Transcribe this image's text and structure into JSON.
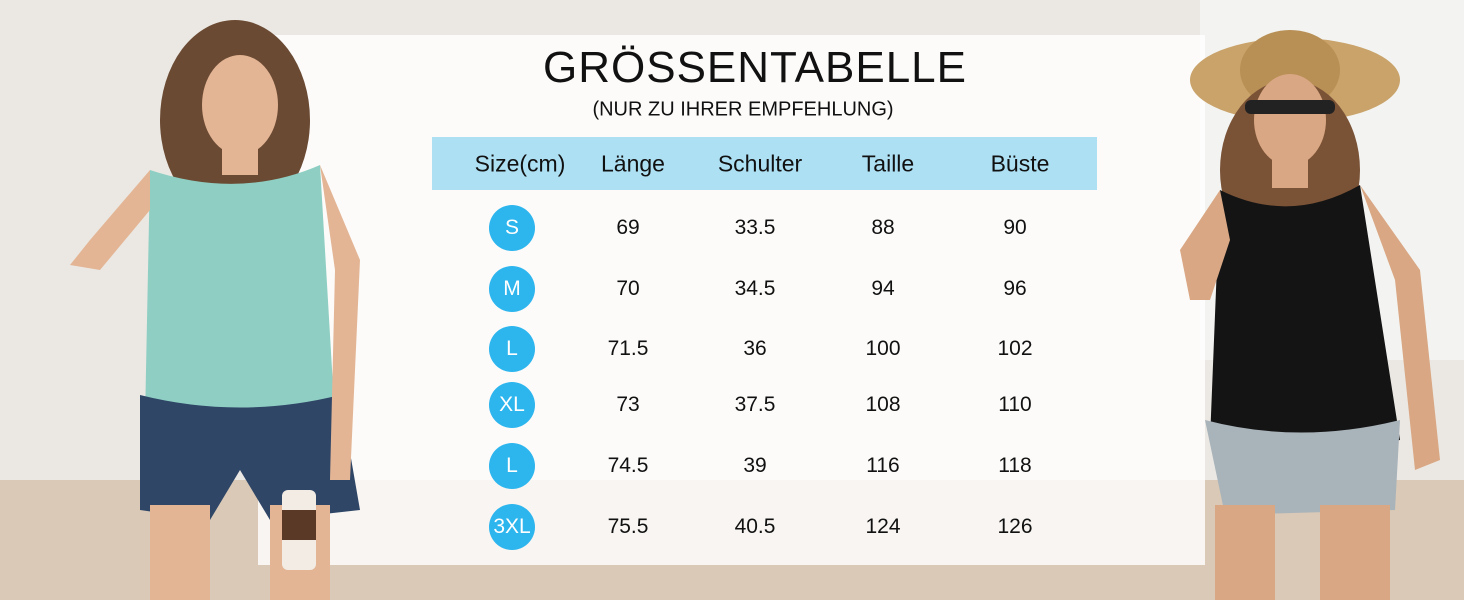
{
  "header": {
    "title": "GRÖSSENTABELLE",
    "subtitle": "(NUR ZU IHRER EMPFEHLUNG)"
  },
  "table": {
    "columns": [
      "Size(cm)",
      "Länge",
      "Schulter",
      "Taille",
      "Büste"
    ],
    "rows": [
      [
        "S",
        "69",
        "33.5",
        "88",
        "90"
      ],
      [
        "M",
        "70",
        "34.5",
        "94",
        "96"
      ],
      [
        "L",
        "71.5",
        "36",
        "100",
        "102"
      ],
      [
        "XL",
        "73",
        "37.5",
        "108",
        "110"
      ],
      [
        "L",
        "74.5",
        "39",
        "116",
        "118"
      ],
      [
        "3XL",
        "75.5",
        "40.5",
        "124",
        "126"
      ]
    ]
  }
}
